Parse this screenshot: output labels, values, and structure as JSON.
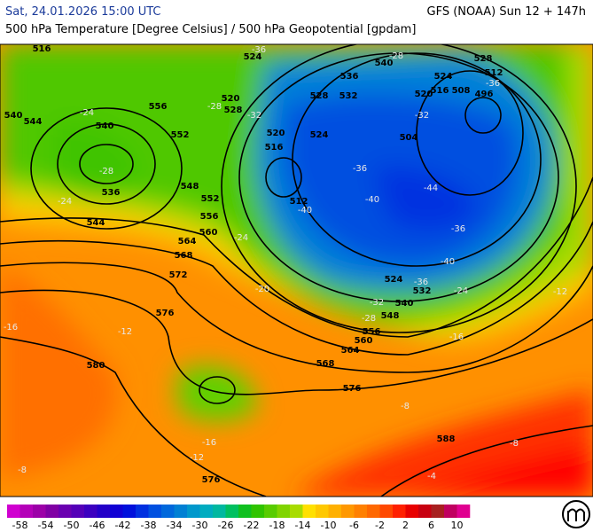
{
  "header": {
    "date": "Sat, 24.01.2026 15:00 UTC",
    "model": "GFS (NOAA) Sun 12 + 147h",
    "title": "500 hPa Temperature [Degree Celsius] / 500 hPa Geopotential [gpdam]"
  },
  "map": {
    "height_labels": [
      516,
      540,
      544,
      556,
      552,
      540,
      536,
      544,
      520,
      528,
      524,
      548,
      552,
      556,
      560,
      564,
      568,
      572,
      576,
      580,
      516,
      520,
      512,
      536,
      528,
      532,
      524,
      528,
      524,
      520,
      516,
      508,
      512,
      496,
      504,
      524,
      532,
      540,
      548,
      556,
      560,
      564,
      568,
      576,
      588,
      576,
      540
    ],
    "temperature_labels": [
      -36,
      -28,
      -36,
      -32,
      -28,
      -32,
      -24,
      -28,
      -24,
      -36,
      -40,
      -44,
      -40,
      -36,
      -40,
      -36,
      -32,
      -28,
      -24,
      -24,
      -20,
      -16,
      -12,
      -16,
      -12,
      -8,
      -8,
      -12,
      -16,
      -8,
      -4
    ]
  },
  "colorbar": {
    "labels": [
      -58,
      -54,
      -50,
      -46,
      -42,
      -38,
      -34,
      -30,
      -26,
      -22,
      -18,
      -14,
      -10,
      -6,
      -2,
      2,
      6,
      10
    ],
    "colors": [
      "#d000d0",
      "#b400b8",
      "#9c00a8",
      "#8000a4",
      "#6a00b0",
      "#5400b8",
      "#3c00c0",
      "#2400c8",
      "#1000d4",
      "#0010dc",
      "#0030e0",
      "#0050e0",
      "#0068dc",
      "#0080d4",
      "#0098cc",
      "#00acc0",
      "#00b8a0",
      "#00c060",
      "#10c020",
      "#30c400",
      "#58cc00",
      "#80d400",
      "#a8dc00",
      "#ffe000",
      "#ffc800",
      "#ffb000",
      "#ff9800",
      "#ff8000",
      "#ff6800",
      "#ff4800",
      "#ff2000",
      "#e80000",
      "#c80010",
      "#a82020",
      "#c00060",
      "#e00090"
    ]
  }
}
